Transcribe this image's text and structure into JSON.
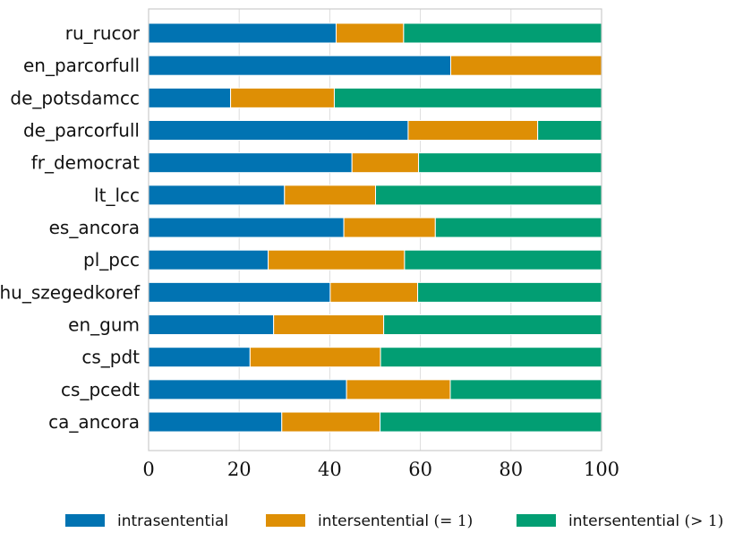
{
  "chart_data": {
    "type": "bar",
    "orientation": "horizontal",
    "stacked": true,
    "title": "",
    "xlabel": "",
    "ylabel": "",
    "xlim": [
      0,
      100
    ],
    "xticks": [
      0,
      20,
      40,
      60,
      80,
      100
    ],
    "grid": true,
    "legend_position": "bottom",
    "categories": [
      "ru_rucor",
      "en_parcorfull",
      "de_potsdamcc",
      "de_parcorfull",
      "fr_democrat",
      "lt_lcc",
      "es_ancora",
      "pl_pcc",
      "hu_szegedkoref",
      "en_gum",
      "cs_pdt",
      "cs_pcedt",
      "ca_ancora"
    ],
    "series": [
      {
        "name": "intrasentential",
        "legend_math": "",
        "color": "#0173b2",
        "values": [
          41.4,
          66.7,
          18.1,
          57.3,
          44.9,
          30.0,
          43.1,
          26.4,
          40.1,
          27.6,
          22.4,
          43.7,
          29.4
        ]
      },
      {
        "name": "intersentential",
        "legend_math": "(= 1)",
        "color": "#de8f05",
        "values": [
          14.9,
          33.3,
          22.9,
          28.6,
          14.7,
          20.1,
          20.2,
          30.1,
          19.3,
          24.3,
          28.8,
          22.9,
          21.7
        ]
      },
      {
        "name": "intersentential",
        "legend_math": "(> 1)",
        "color": "#029e73",
        "values": [
          43.7,
          0.0,
          59.0,
          14.1,
          40.4,
          49.9,
          36.7,
          43.5,
          40.6,
          48.1,
          48.8,
          33.4,
          48.9
        ]
      }
    ]
  }
}
